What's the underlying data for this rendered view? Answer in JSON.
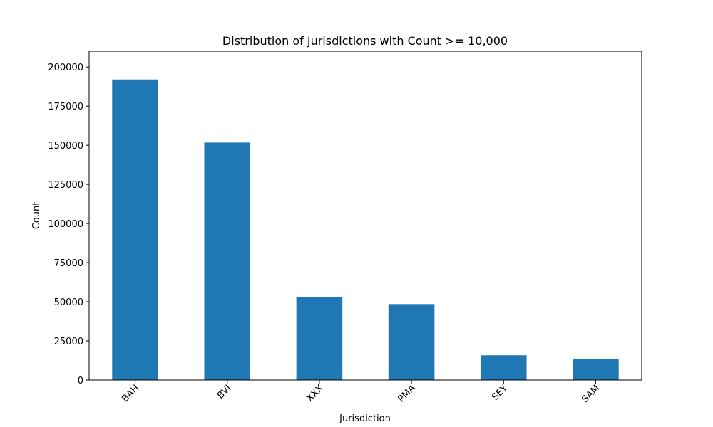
{
  "chart_data": {
    "type": "bar",
    "title": "Distribution of Jurisdictions with Count >= 10,000",
    "xlabel": "Jurisdiction",
    "ylabel": "Count",
    "categories": [
      "BAH",
      "BVI",
      "XXX",
      "PMA",
      "SEY",
      "SAM"
    ],
    "values": [
      192000,
      151700,
      53000,
      48500,
      15800,
      13500
    ],
    "ylim": [
      0,
      200000
    ],
    "yticks": [
      0,
      25000,
      50000,
      75000,
      100000,
      125000,
      150000,
      175000,
      200000
    ],
    "ytick_labels": [
      "0",
      "25000",
      "50000",
      "75000",
      "100000",
      "125000",
      "150000",
      "175000",
      "200000"
    ],
    "x_tick_rotation": 45,
    "bar_color": "#1f77b4",
    "grid": false,
    "legend": "none"
  }
}
